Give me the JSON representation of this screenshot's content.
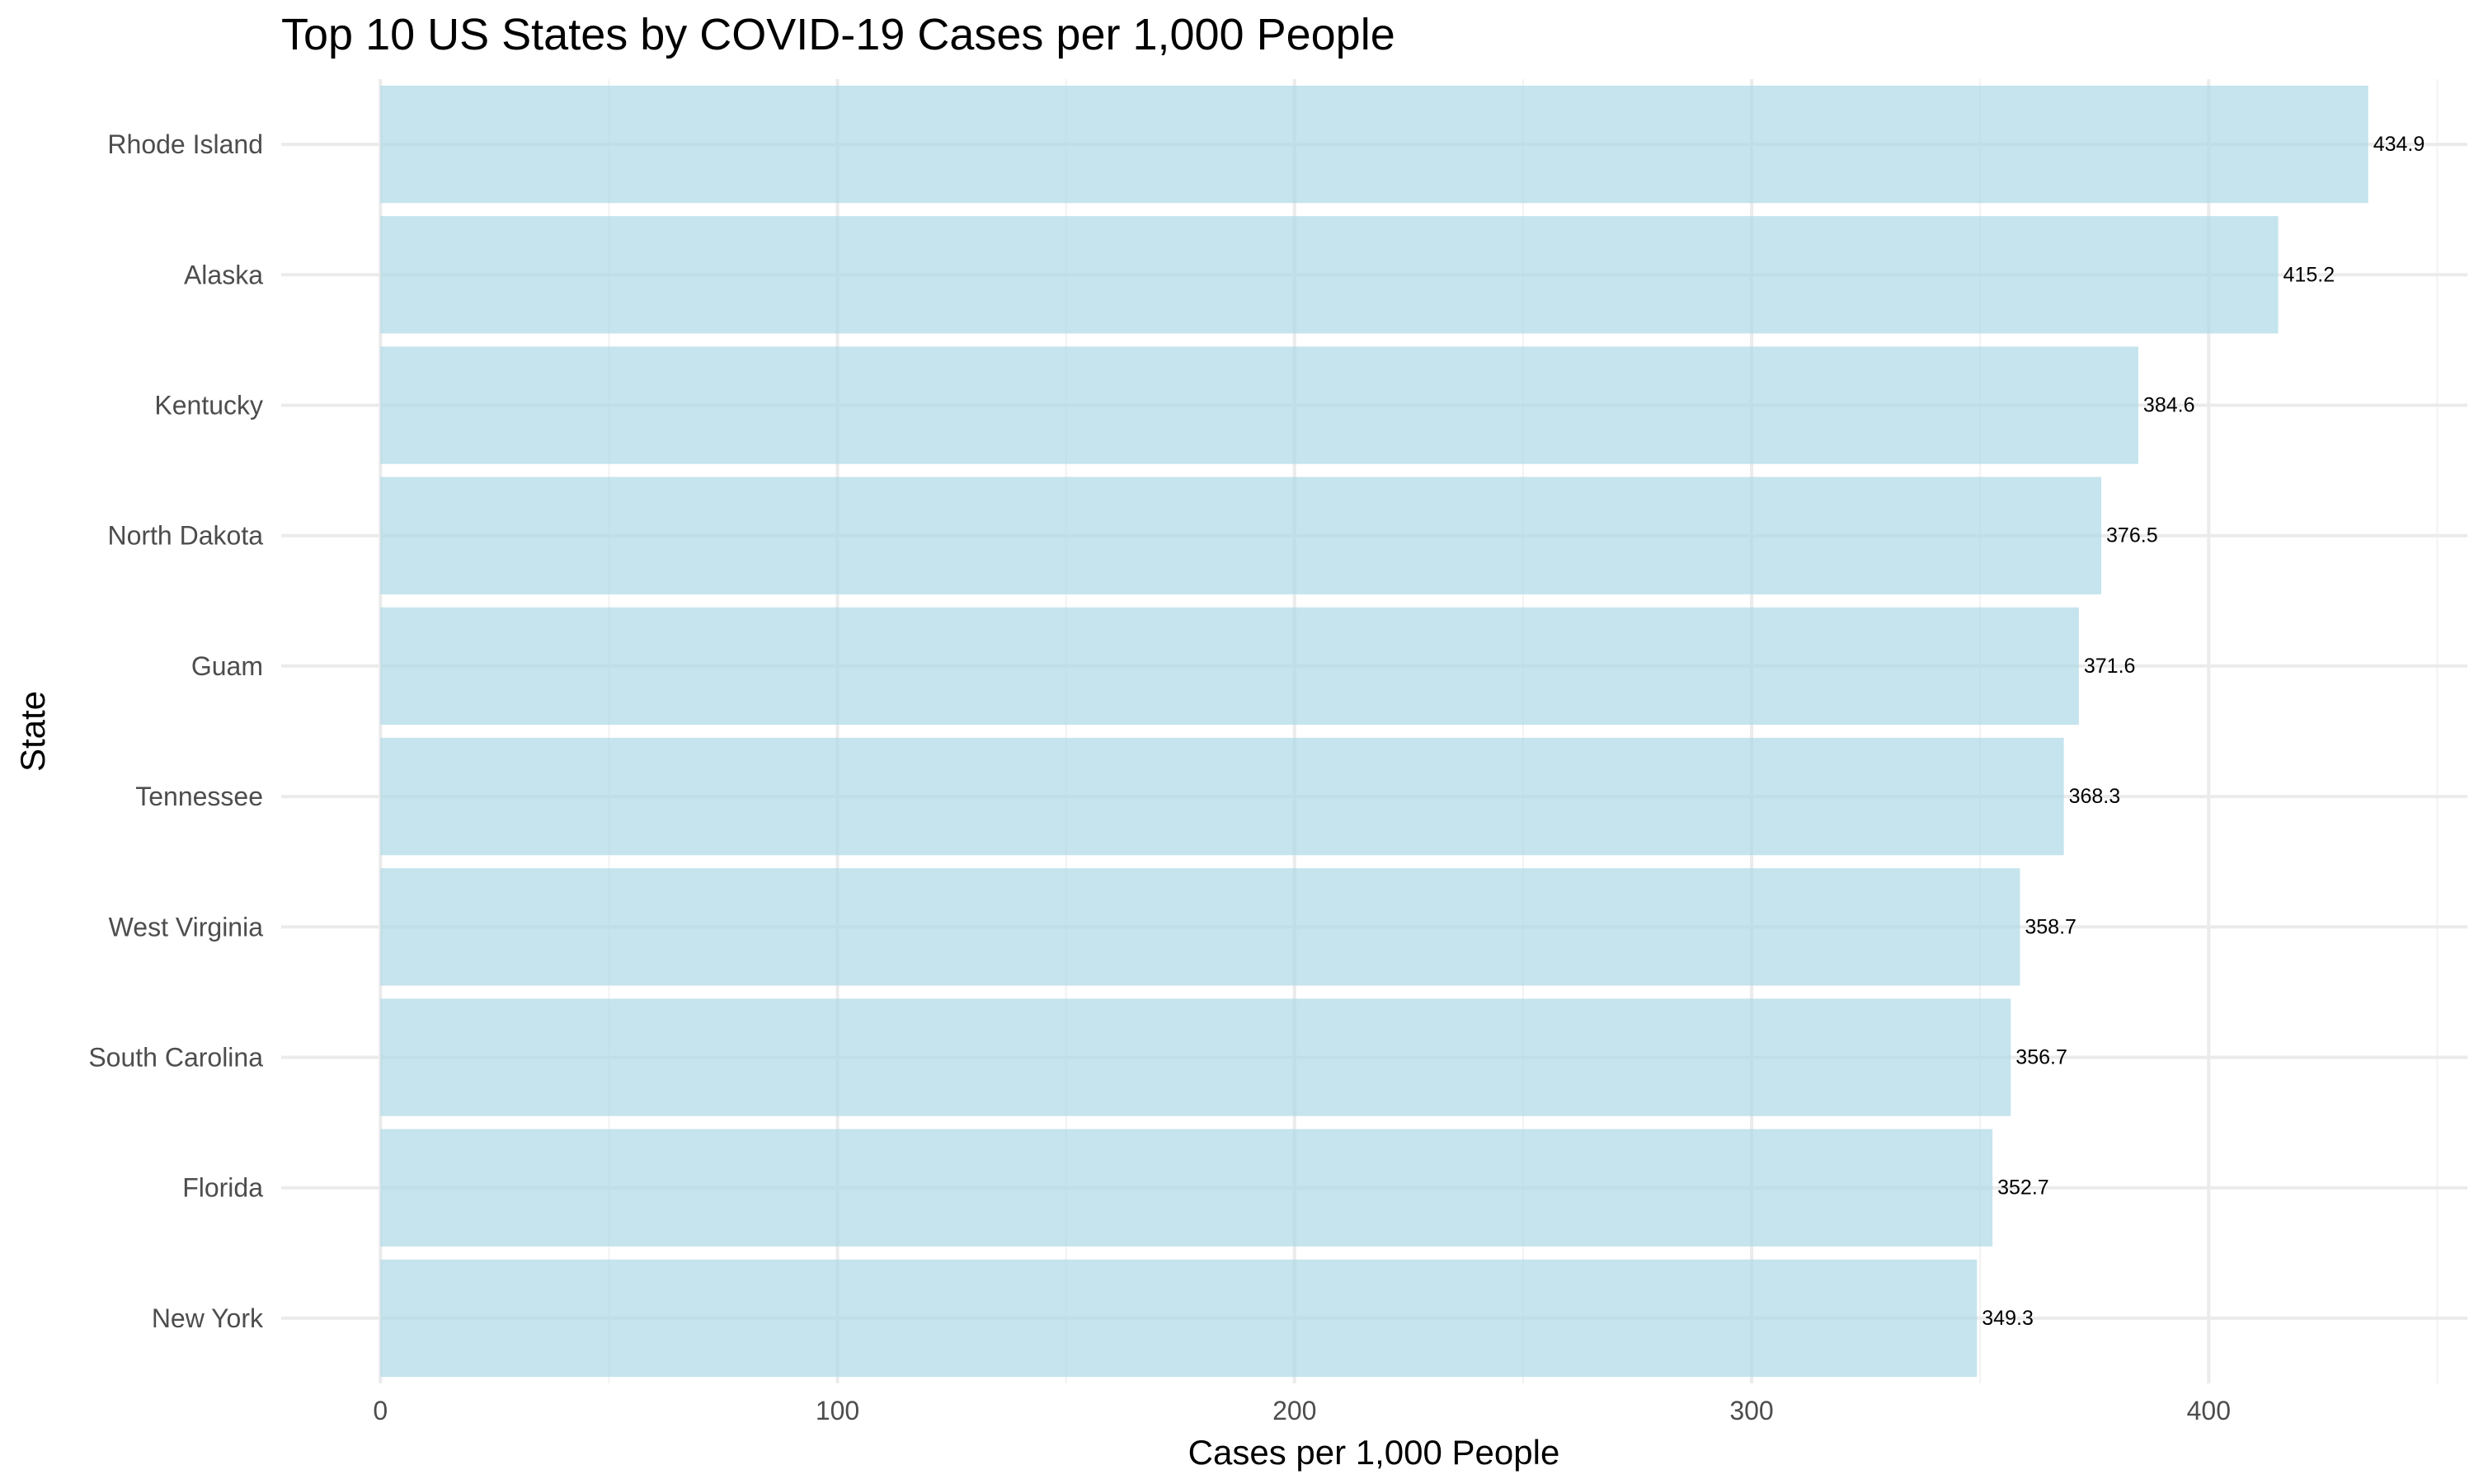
{
  "chart_data": {
    "type": "bar",
    "orientation": "horizontal",
    "title": "Top 10 US States by COVID-19 Cases per 1,000 People",
    "xlabel": "Cases per 1,000 People",
    "ylabel": "State",
    "categories": [
      "Rhode Island",
      "Alaska",
      "Kentucky",
      "North Dakota",
      "Guam",
      "Tennessee",
      "West Virginia",
      "South Carolina",
      "Florida",
      "New York"
    ],
    "values": [
      434.9,
      415.2,
      384.6,
      376.5,
      371.6,
      368.3,
      358.7,
      356.7,
      352.7,
      349.3
    ],
    "data_labels": [
      "434.9",
      "415.2",
      "384.6",
      "376.5",
      "371.6",
      "368.3",
      "358.7",
      "356.7",
      "352.7",
      "349.3"
    ],
    "xlim": [
      -21.7,
      456.6
    ],
    "xticks": [
      0,
      100,
      200,
      300,
      400
    ],
    "xtick_labels": [
      "0",
      "100",
      "200",
      "300",
      "400"
    ],
    "grid": true,
    "bar_color": "#ADD8E6",
    "bar_opacity": 0.7
  }
}
